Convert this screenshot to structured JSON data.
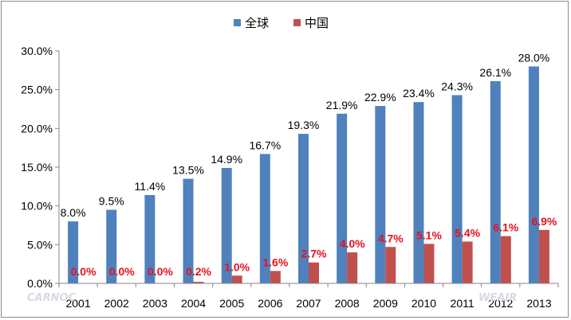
{
  "chart_data": {
    "type": "bar",
    "title": "",
    "xlabel": "",
    "ylabel": "",
    "categories": [
      "2001",
      "2002",
      "2003",
      "2004",
      "2005",
      "2006",
      "2007",
      "2008",
      "2009",
      "2010",
      "2011",
      "2012",
      "2013"
    ],
    "series": [
      {
        "name": "全球",
        "color": "#4f81bd",
        "label_color": "#000000",
        "values": [
          8.0,
          9.5,
          11.4,
          13.5,
          14.9,
          16.7,
          19.3,
          21.9,
          22.9,
          23.4,
          24.3,
          26.1,
          28.0
        ]
      },
      {
        "name": "中国",
        "color": "#c0504d",
        "label_color": "#e8111b",
        "values": [
          0.0,
          0.0,
          0.0,
          0.2,
          1.0,
          1.6,
          2.7,
          4.0,
          4.7,
          5.1,
          5.4,
          6.1,
          6.9
        ]
      }
    ],
    "ylim": [
      0,
      30
    ],
    "yticks": [
      0,
      5,
      10,
      15,
      20,
      25,
      30
    ],
    "value_format": "percent_1dp",
    "grid": false,
    "legend": "top-center"
  },
  "watermarks": [
    "CARNOC",
    "WEAIR"
  ]
}
